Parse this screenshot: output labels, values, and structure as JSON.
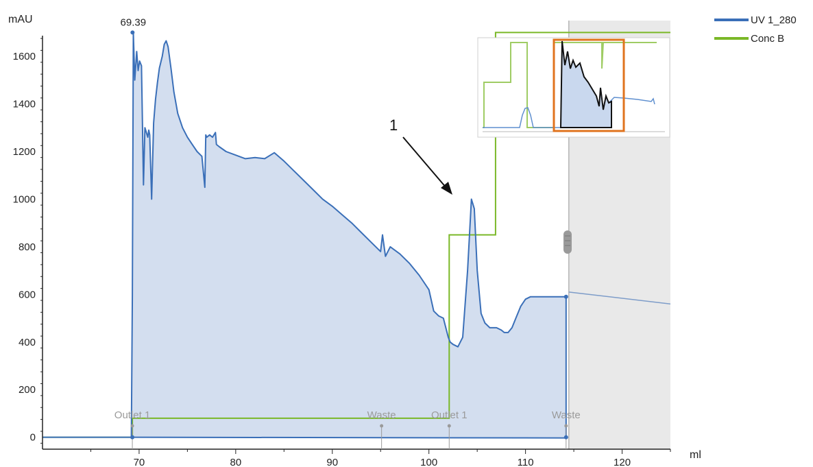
{
  "chart_data": {
    "type": "line",
    "xunit": "ml",
    "yunit": "mAU",
    "xlim": [
      60,
      125
    ],
    "ylim": [
      -50,
      1750
    ],
    "x_ticks": [
      70,
      80,
      90,
      100,
      110,
      120
    ],
    "y_ticks": [
      0,
      200,
      400,
      600,
      800,
      1000,
      1200,
      1400,
      1600
    ],
    "grid": false,
    "legend_position": "top-right",
    "colors": {
      "uv": "#3a6fb8",
      "uv_fill": "#d3deef",
      "conc": "#7ab827",
      "shade": "#e9e9e9",
      "inset_frame": "#e0731e",
      "fraction": "#9a9a9a"
    },
    "series": [
      {
        "name": "UV 1_280",
        "x": [
          60,
          69.2,
          69.3,
          69.4,
          69.55,
          69.75,
          69.9,
          70.05,
          70.25,
          70.45,
          70.6,
          70.75,
          70.9,
          71.0,
          71.1,
          71.3,
          71.5,
          71.7,
          71.9,
          72.1,
          72.4,
          72.6,
          72.8,
          73.0,
          73.3,
          73.6,
          74.0,
          74.5,
          75.0,
          75.5,
          76.0,
          76.5,
          76.8,
          76.9,
          77.0,
          77.3,
          77.6,
          77.9,
          78.0,
          78.3,
          79.0,
          80.0,
          81.0,
          82.0,
          83.0,
          84.0,
          85.0,
          86.0,
          87.0,
          88.0,
          89.0,
          90.0,
          91.0,
          92.0,
          93.0,
          94.0,
          95.0,
          95.2,
          95.5,
          96.0,
          97.0,
          98.0,
          99.0,
          100.0,
          100.5,
          101.0,
          101.5,
          102.0,
          102.2,
          102.5,
          103.0,
          103.5,
          104.0,
          104.4,
          104.7,
          105.0,
          105.4,
          105.8,
          106.3,
          107.0,
          107.5,
          107.8,
          108.2,
          108.6,
          109.0,
          109.5,
          110.0,
          110.5,
          111.0,
          112.0,
          113.0,
          114.0,
          114.2
        ],
        "values": [
          0,
          0,
          600,
          1700,
          1500,
          1620,
          1540,
          1580,
          1560,
          1060,
          1300,
          1280,
          1260,
          1290,
          1270,
          1000,
          1320,
          1420,
          1490,
          1550,
          1600,
          1650,
          1665,
          1640,
          1550,
          1450,
          1360,
          1300,
          1260,
          1230,
          1200,
          1180,
          1050,
          1270,
          1260,
          1270,
          1260,
          1280,
          1230,
          1220,
          1200,
          1185,
          1170,
          1175,
          1170,
          1195,
          1160,
          1120,
          1080,
          1040,
          1000,
          970,
          935,
          900,
          860,
          820,
          780,
          850,
          760,
          800,
          770,
          730,
          680,
          620,
          530,
          510,
          500,
          420,
          400,
          390,
          380,
          420,
          700,
          1000,
          960,
          700,
          520,
          480,
          460,
          460,
          450,
          440,
          440,
          460,
          500,
          550,
          580,
          590,
          590,
          590,
          590,
          590,
          590
        ]
      },
      {
        "name": "Conc B",
        "x": [
          60,
          69.3,
          69.3,
          102.1,
          102.1,
          106.9,
          106.9,
          125
        ],
        "values": [
          0,
          0,
          80,
          80,
          850,
          850,
          1700,
          1700
        ]
      }
    ],
    "peak_labels": [
      {
        "x": 69.39,
        "text": "69.39"
      }
    ],
    "fractions": [
      {
        "x": 69.3,
        "text": "Outlet 1"
      },
      {
        "x": 95.1,
        "text": "Waste"
      },
      {
        "x": 102.1,
        "text": "Outlet 1"
      },
      {
        "x": 114.2,
        "text": "Waste"
      }
    ],
    "annotations": [
      {
        "x": 104.1,
        "y": 1040,
        "text": "1"
      }
    ]
  }
}
